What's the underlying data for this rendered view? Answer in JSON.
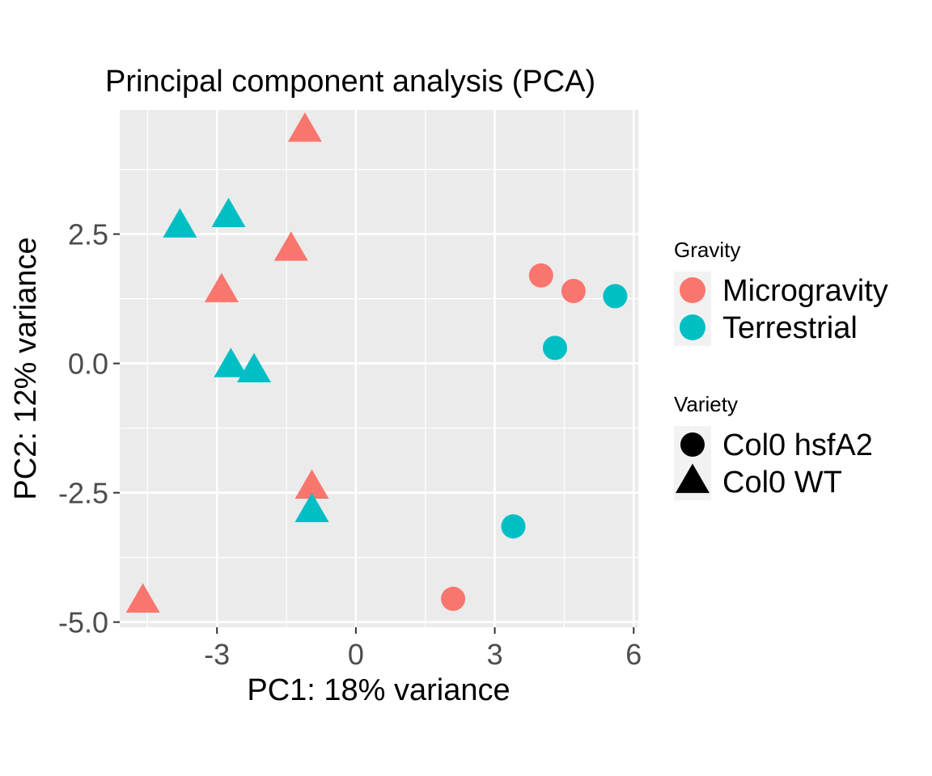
{
  "chart_data": {
    "type": "scatter",
    "title": "Principal component analysis (PCA)",
    "xlabel": "PC1: 18% variance",
    "ylabel": "PC2: 12% variance",
    "xlim": [
      -5.1,
      6.1
    ],
    "ylim": [
      -5.1,
      4.9
    ],
    "x_ticks": [
      -3,
      0,
      3,
      6
    ],
    "x_tick_labels": [
      "-3",
      "0",
      "3",
      "6"
    ],
    "y_ticks": [
      -5,
      -2.5,
      0,
      2.5
    ],
    "y_tick_labels": [
      "-5.0",
      "-2.5",
      "0.0",
      "2.5"
    ],
    "grid": true,
    "legend_position": "right",
    "colors": {
      "Microgravity": "#F8766D",
      "Terrestrial": "#00BFC4",
      "panel": "#EBEBEB",
      "grid": "#FFFFFF"
    },
    "legends": [
      {
        "title": "Gravity",
        "entries": [
          "Microgravity",
          "Terrestrial"
        ]
      },
      {
        "title": "Variety",
        "entries": [
          "Col0 hsfA2",
          "Col0 WT"
        ]
      }
    ],
    "points": [
      {
        "x": -1.1,
        "y": 4.5,
        "gravity": "Microgravity",
        "variety": "Col0 WT"
      },
      {
        "x": -1.4,
        "y": 2.2,
        "gravity": "Microgravity",
        "variety": "Col0 WT"
      },
      {
        "x": -2.9,
        "y": 1.4,
        "gravity": "Microgravity",
        "variety": "Col0 WT"
      },
      {
        "x": -0.95,
        "y": -2.4,
        "gravity": "Microgravity",
        "variety": "Col0 WT"
      },
      {
        "x": -4.6,
        "y": -4.6,
        "gravity": "Microgravity",
        "variety": "Col0 WT"
      },
      {
        "x": -3.8,
        "y": 2.65,
        "gravity": "Terrestrial",
        "variety": "Col0 WT"
      },
      {
        "x": -2.75,
        "y": 2.85,
        "gravity": "Terrestrial",
        "variety": "Col0 WT"
      },
      {
        "x": -2.7,
        "y": -0.05,
        "gravity": "Terrestrial",
        "variety": "Col0 WT"
      },
      {
        "x": -2.2,
        "y": -0.15,
        "gravity": "Terrestrial",
        "variety": "Col0 WT"
      },
      {
        "x": -0.95,
        "y": -2.85,
        "gravity": "Terrestrial",
        "variety": "Col0 WT"
      },
      {
        "x": 4.0,
        "y": 1.7,
        "gravity": "Microgravity",
        "variety": "Col0 hsfA2"
      },
      {
        "x": 4.7,
        "y": 1.4,
        "gravity": "Microgravity",
        "variety": "Col0 hsfA2"
      },
      {
        "x": 2.1,
        "y": -4.55,
        "gravity": "Microgravity",
        "variety": "Col0 hsfA2"
      },
      {
        "x": 5.6,
        "y": 1.3,
        "gravity": "Terrestrial",
        "variety": "Col0 hsfA2"
      },
      {
        "x": 4.3,
        "y": 0.3,
        "gravity": "Terrestrial",
        "variety": "Col0 hsfA2"
      },
      {
        "x": 3.4,
        "y": -3.15,
        "gravity": "Terrestrial",
        "variety": "Col0 hsfA2"
      }
    ]
  }
}
